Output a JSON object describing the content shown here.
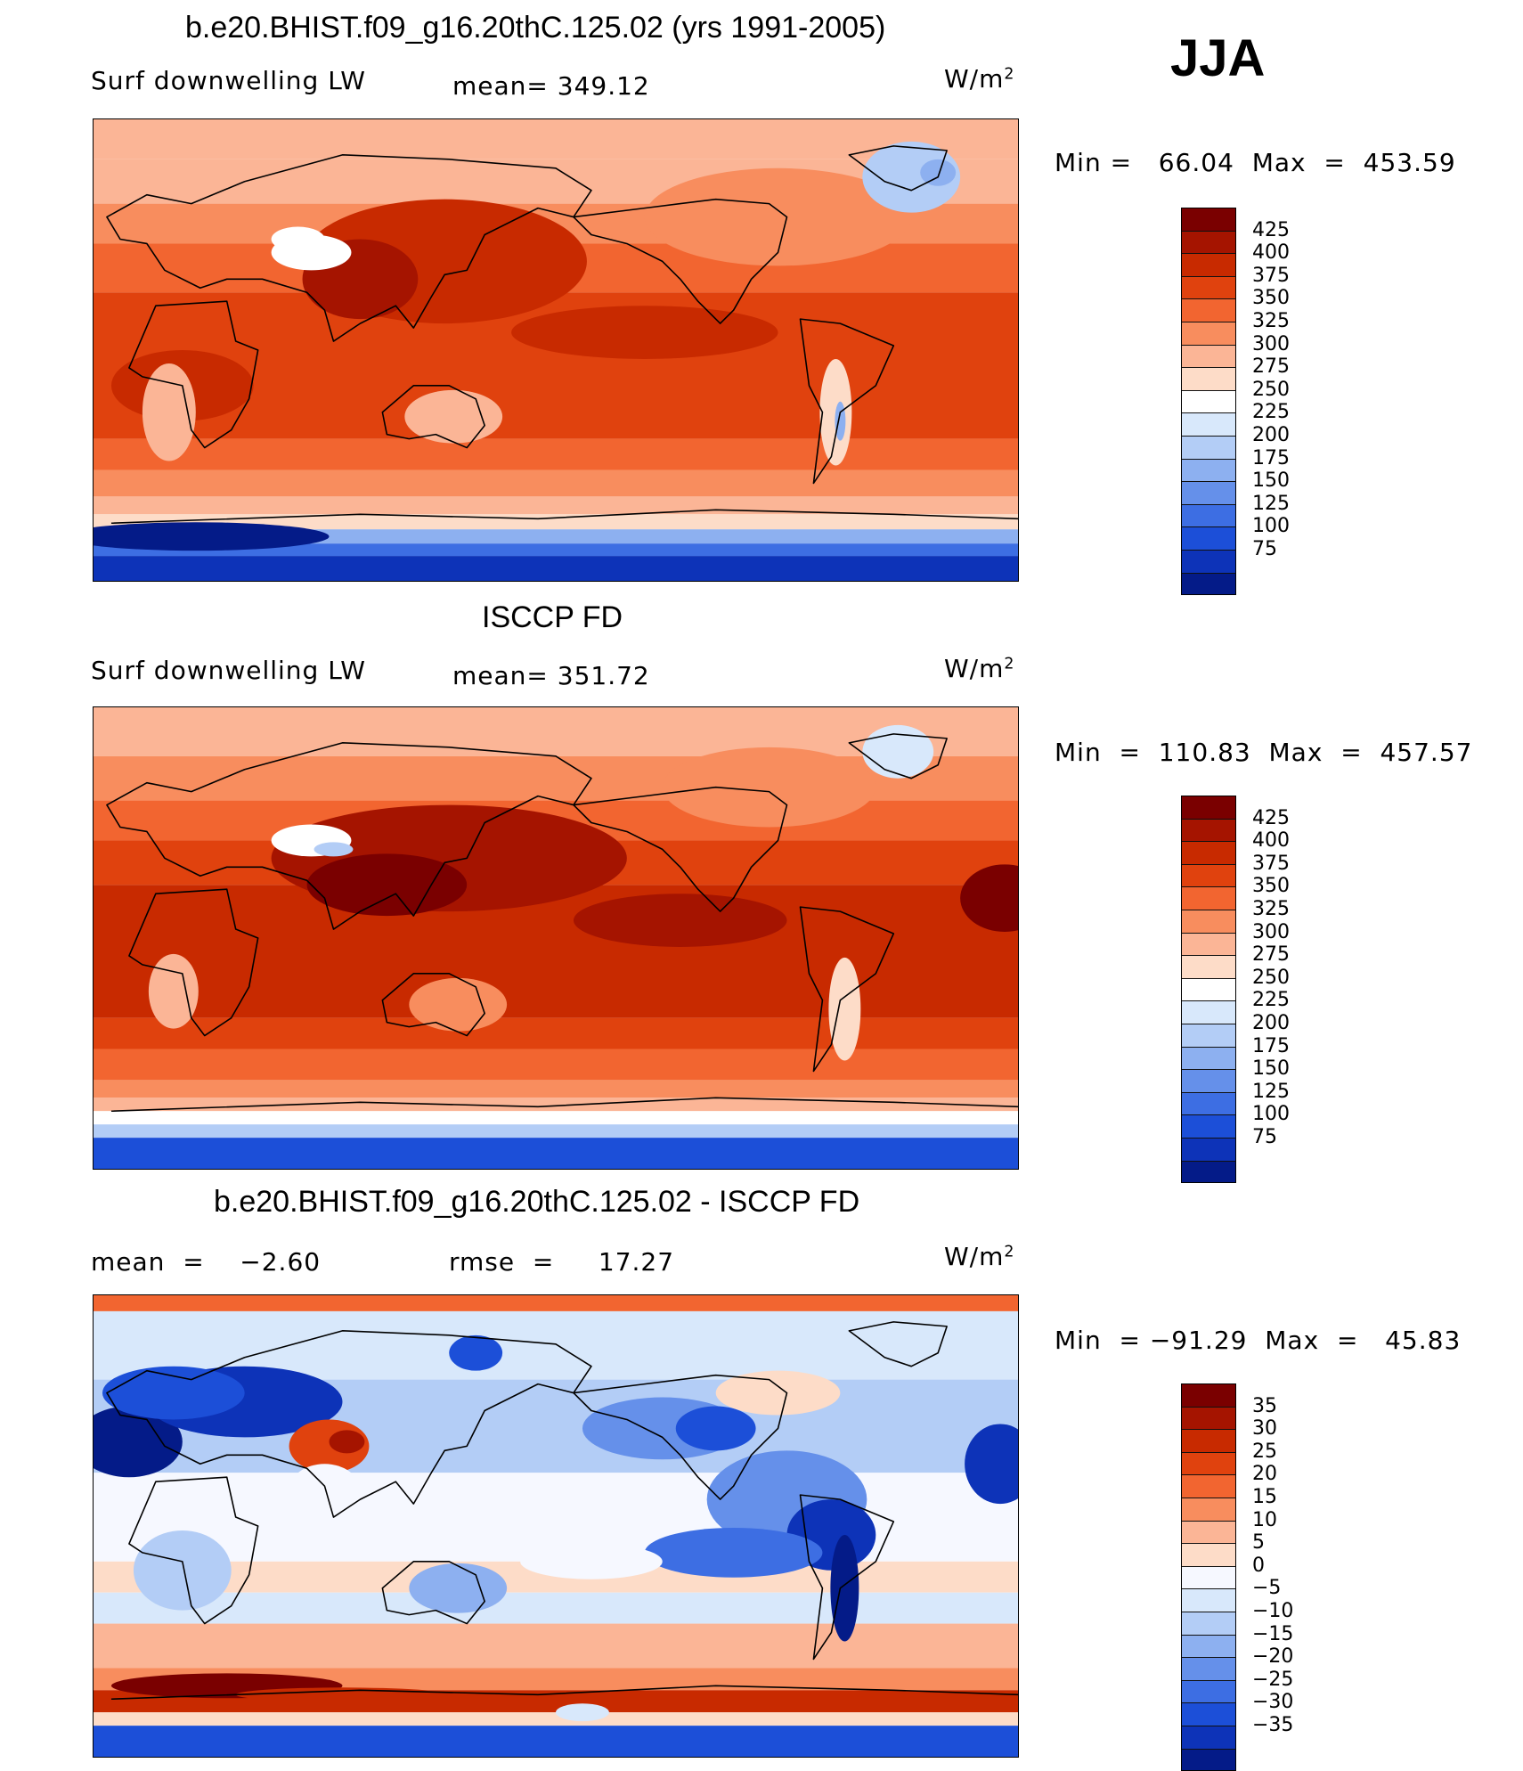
{
  "season": "JJA",
  "units_label": "W/m",
  "units_sup": "2",
  "panels": [
    {
      "title": "b.e20.BHIST.f09_g16.20thC.125.02 (yrs 1991-2005)",
      "left_label": "Surf downwelling LW",
      "mid_label": "mean= 349.12",
      "min_max": "Min =   66.04  Max  =  453.59",
      "field": "model"
    },
    {
      "title": "ISCCP FD",
      "left_label": "Surf downwelling LW",
      "mid_label": "mean= 351.72",
      "min_max": "Min  =  110.83  Max  =  457.57",
      "field": "obs"
    },
    {
      "title": "b.e20.BHIST.f09_g16.20thC.125.02 - ISCCP FD",
      "left_label": "mean  =    −2.60",
      "mid_label": "rmse  =     17.27",
      "min_max": "Min  = −91.29  Max  =   45.83",
      "field": "diff"
    }
  ],
  "colorbars": {
    "abs": {
      "labels": [
        "425",
        "400",
        "375",
        "350",
        "325",
        "300",
        "275",
        "250",
        "225",
        "200",
        "175",
        "150",
        "125",
        "100",
        "75"
      ],
      "colors": [
        "#7a0000",
        "#a51400",
        "#c82a00",
        "#e0420e",
        "#f26530",
        "#f88d5e",
        "#fbb596",
        "#fddcc8",
        "#ffffff",
        "#d8e8fb",
        "#b3cdf6",
        "#8db0f0",
        "#6590ea",
        "#3d6ee3",
        "#1c4fd8",
        "#0d33b8",
        "#041b88"
      ]
    },
    "diff": {
      "labels": [
        "35",
        "30",
        "25",
        "20",
        "15",
        "10",
        "5",
        "0",
        "−5",
        "−10",
        "−15",
        "−20",
        "−25",
        "−30",
        "−35"
      ],
      "colors": [
        "#7a0000",
        "#a51400",
        "#c82a00",
        "#e0420e",
        "#f26530",
        "#f88d5e",
        "#fbb596",
        "#fddcc8",
        "#f6f8ff",
        "#d8e8fb",
        "#b3cdf6",
        "#8db0f0",
        "#6590ea",
        "#3d6ee3",
        "#1c4fd8",
        "#0d33b8",
        "#041b88"
      ]
    }
  }
}
